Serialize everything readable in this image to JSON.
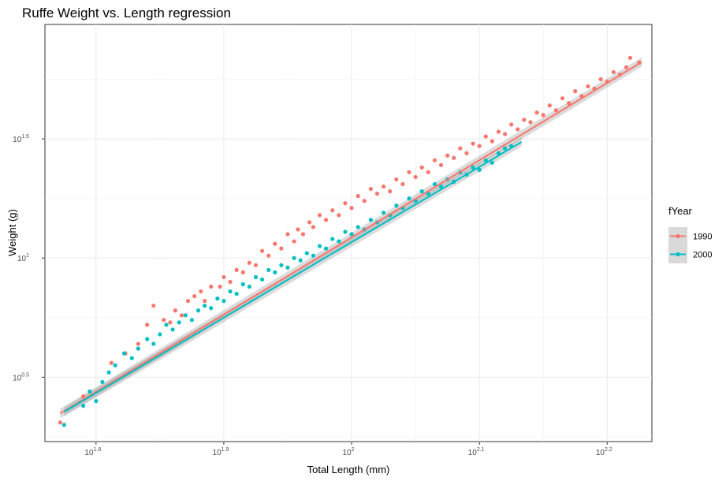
{
  "chart_data": {
    "type": "scatter",
    "title": "Ruffe Weight vs. Length regression",
    "xlabel": "Total Length (mm)",
    "ylabel": "Weight (g)",
    "x_scale": "log10",
    "y_scale": "log10",
    "x_log_range": [
      1.76,
      2.235
    ],
    "y_log_range": [
      0.23,
      1.98
    ],
    "x_ticks": [
      {
        "base": "10",
        "exp": "1.8",
        "log": 1.8
      },
      {
        "base": "10",
        "exp": "1.9",
        "log": 1.9
      },
      {
        "base": "10",
        "exp": "2",
        "log": 2.0
      },
      {
        "base": "10",
        "exp": "2.1",
        "log": 2.1
      },
      {
        "base": "10",
        "exp": "2.2",
        "log": 2.2
      }
    ],
    "y_ticks": [
      {
        "base": "10",
        "exp": "0.5",
        "log": 0.5
      },
      {
        "base": "10",
        "exp": "1",
        "log": 1.0
      },
      {
        "base": "10",
        "exp": "1.5",
        "log": 1.5
      }
    ],
    "grid": true,
    "legend": {
      "title": "fYear",
      "position": "right"
    },
    "series": [
      {
        "name": "1990",
        "color": "#F8766D",
        "points_log": [
          [
            1.772,
            0.31
          ],
          [
            1.79,
            0.42
          ],
          [
            1.812,
            0.56
          ],
          [
            1.823,
            0.6
          ],
          [
            1.833,
            0.64
          ],
          [
            1.84,
            0.72
          ],
          [
            1.845,
            0.8
          ],
          [
            1.853,
            0.74
          ],
          [
            1.858,
            0.73
          ],
          [
            1.862,
            0.78
          ],
          [
            1.867,
            0.76
          ],
          [
            1.872,
            0.82
          ],
          [
            1.877,
            0.84
          ],
          [
            1.882,
            0.86
          ],
          [
            1.885,
            0.82
          ],
          [
            1.89,
            0.88
          ],
          [
            1.897,
            0.88
          ],
          [
            1.9,
            0.92
          ],
          [
            1.905,
            0.9
          ],
          [
            1.91,
            0.95
          ],
          [
            1.915,
            0.94
          ],
          [
            1.92,
            0.98
          ],
          [
            1.925,
            0.97
          ],
          [
            1.93,
            1.03
          ],
          [
            1.935,
            1.01
          ],
          [
            1.94,
            1.06
          ],
          [
            1.945,
            1.04
          ],
          [
            1.95,
            1.1
          ],
          [
            1.955,
            1.07
          ],
          [
            1.958,
            1.12
          ],
          [
            1.962,
            1.1
          ],
          [
            1.967,
            1.15
          ],
          [
            1.97,
            1.13
          ],
          [
            1.975,
            1.18
          ],
          [
            1.98,
            1.16
          ],
          [
            1.985,
            1.2
          ],
          [
            1.99,
            1.18
          ],
          [
            1.995,
            1.23
          ],
          [
            2.0,
            1.21
          ],
          [
            2.005,
            1.26
          ],
          [
            2.01,
            1.24
          ],
          [
            2.015,
            1.29
          ],
          [
            2.02,
            1.27
          ],
          [
            2.025,
            1.3
          ],
          [
            2.03,
            1.28
          ],
          [
            2.035,
            1.33
          ],
          [
            2.04,
            1.31
          ],
          [
            2.045,
            1.36
          ],
          [
            2.05,
            1.34
          ],
          [
            2.055,
            1.38
          ],
          [
            2.06,
            1.36
          ],
          [
            2.065,
            1.41
          ],
          [
            2.07,
            1.39
          ],
          [
            2.075,
            1.43
          ],
          [
            2.08,
            1.42
          ],
          [
            2.085,
            1.46
          ],
          [
            2.09,
            1.44
          ],
          [
            2.095,
            1.48
          ],
          [
            2.1,
            1.47
          ],
          [
            2.105,
            1.51
          ],
          [
            2.11,
            1.49
          ],
          [
            2.115,
            1.53
          ],
          [
            2.12,
            1.52
          ],
          [
            2.125,
            1.56
          ],
          [
            2.13,
            1.54
          ],
          [
            2.135,
            1.58
          ],
          [
            2.14,
            1.57
          ],
          [
            2.145,
            1.61
          ],
          [
            2.15,
            1.6
          ],
          [
            2.155,
            1.64
          ],
          [
            2.16,
            1.62
          ],
          [
            2.165,
            1.67
          ],
          [
            2.17,
            1.65
          ],
          [
            2.175,
            1.7
          ],
          [
            2.18,
            1.68
          ],
          [
            2.185,
            1.72
          ],
          [
            2.19,
            1.71
          ],
          [
            2.195,
            1.75
          ],
          [
            2.2,
            1.74
          ],
          [
            2.205,
            1.78
          ],
          [
            2.21,
            1.77
          ],
          [
            2.215,
            1.8
          ],
          [
            2.218,
            1.84
          ],
          [
            2.225,
            1.82
          ]
        ],
        "fit_log": [
          [
            1.772,
            0.348
          ],
          [
            2.227,
            1.822
          ]
        ]
      },
      {
        "name": "2000",
        "color": "#00BFC4",
        "points_log": [
          [
            1.775,
            0.3
          ],
          [
            1.79,
            0.38
          ],
          [
            1.795,
            0.44
          ],
          [
            1.8,
            0.4
          ],
          [
            1.805,
            0.48
          ],
          [
            1.81,
            0.52
          ],
          [
            1.815,
            0.55
          ],
          [
            1.822,
            0.6
          ],
          [
            1.828,
            0.58
          ],
          [
            1.833,
            0.62
          ],
          [
            1.84,
            0.66
          ],
          [
            1.845,
            0.64
          ],
          [
            1.85,
            0.68
          ],
          [
            1.855,
            0.72
          ],
          [
            1.86,
            0.7
          ],
          [
            1.865,
            0.73
          ],
          [
            1.87,
            0.76
          ],
          [
            1.875,
            0.74
          ],
          [
            1.88,
            0.78
          ],
          [
            1.885,
            0.8
          ],
          [
            1.89,
            0.79
          ],
          [
            1.895,
            0.83
          ],
          [
            1.9,
            0.82
          ],
          [
            1.905,
            0.86
          ],
          [
            1.91,
            0.85
          ],
          [
            1.915,
            0.89
          ],
          [
            1.92,
            0.88
          ],
          [
            1.925,
            0.92
          ],
          [
            1.93,
            0.91
          ],
          [
            1.935,
            0.95
          ],
          [
            1.94,
            0.94
          ],
          [
            1.945,
            0.97
          ],
          [
            1.95,
            0.96
          ],
          [
            1.955,
            1.0
          ],
          [
            1.96,
            0.99
          ],
          [
            1.965,
            1.02
          ],
          [
            1.97,
            1.01
          ],
          [
            1.975,
            1.05
          ],
          [
            1.98,
            1.04
          ],
          [
            1.985,
            1.08
          ],
          [
            1.99,
            1.07
          ],
          [
            1.995,
            1.11
          ],
          [
            2.0,
            1.1
          ],
          [
            2.005,
            1.13
          ],
          [
            2.01,
            1.12
          ],
          [
            2.015,
            1.16
          ],
          [
            2.02,
            1.15
          ],
          [
            2.025,
            1.19
          ],
          [
            2.03,
            1.18
          ],
          [
            2.035,
            1.22
          ],
          [
            2.04,
            1.21
          ],
          [
            2.045,
            1.25
          ],
          [
            2.05,
            1.24
          ],
          [
            2.055,
            1.28
          ],
          [
            2.06,
            1.27
          ],
          [
            2.065,
            1.31
          ],
          [
            2.07,
            1.3
          ],
          [
            2.075,
            1.33
          ],
          [
            2.08,
            1.32
          ],
          [
            2.085,
            1.36
          ],
          [
            2.09,
            1.35
          ],
          [
            2.095,
            1.38
          ],
          [
            2.1,
            1.37
          ],
          [
            2.105,
            1.41
          ],
          [
            2.11,
            1.4
          ],
          [
            2.115,
            1.44
          ],
          [
            2.12,
            1.46
          ],
          [
            2.125,
            1.47
          ]
        ],
        "fit_log": [
          [
            1.775,
            0.355
          ],
          [
            2.133,
            1.487
          ]
        ]
      }
    ]
  }
}
